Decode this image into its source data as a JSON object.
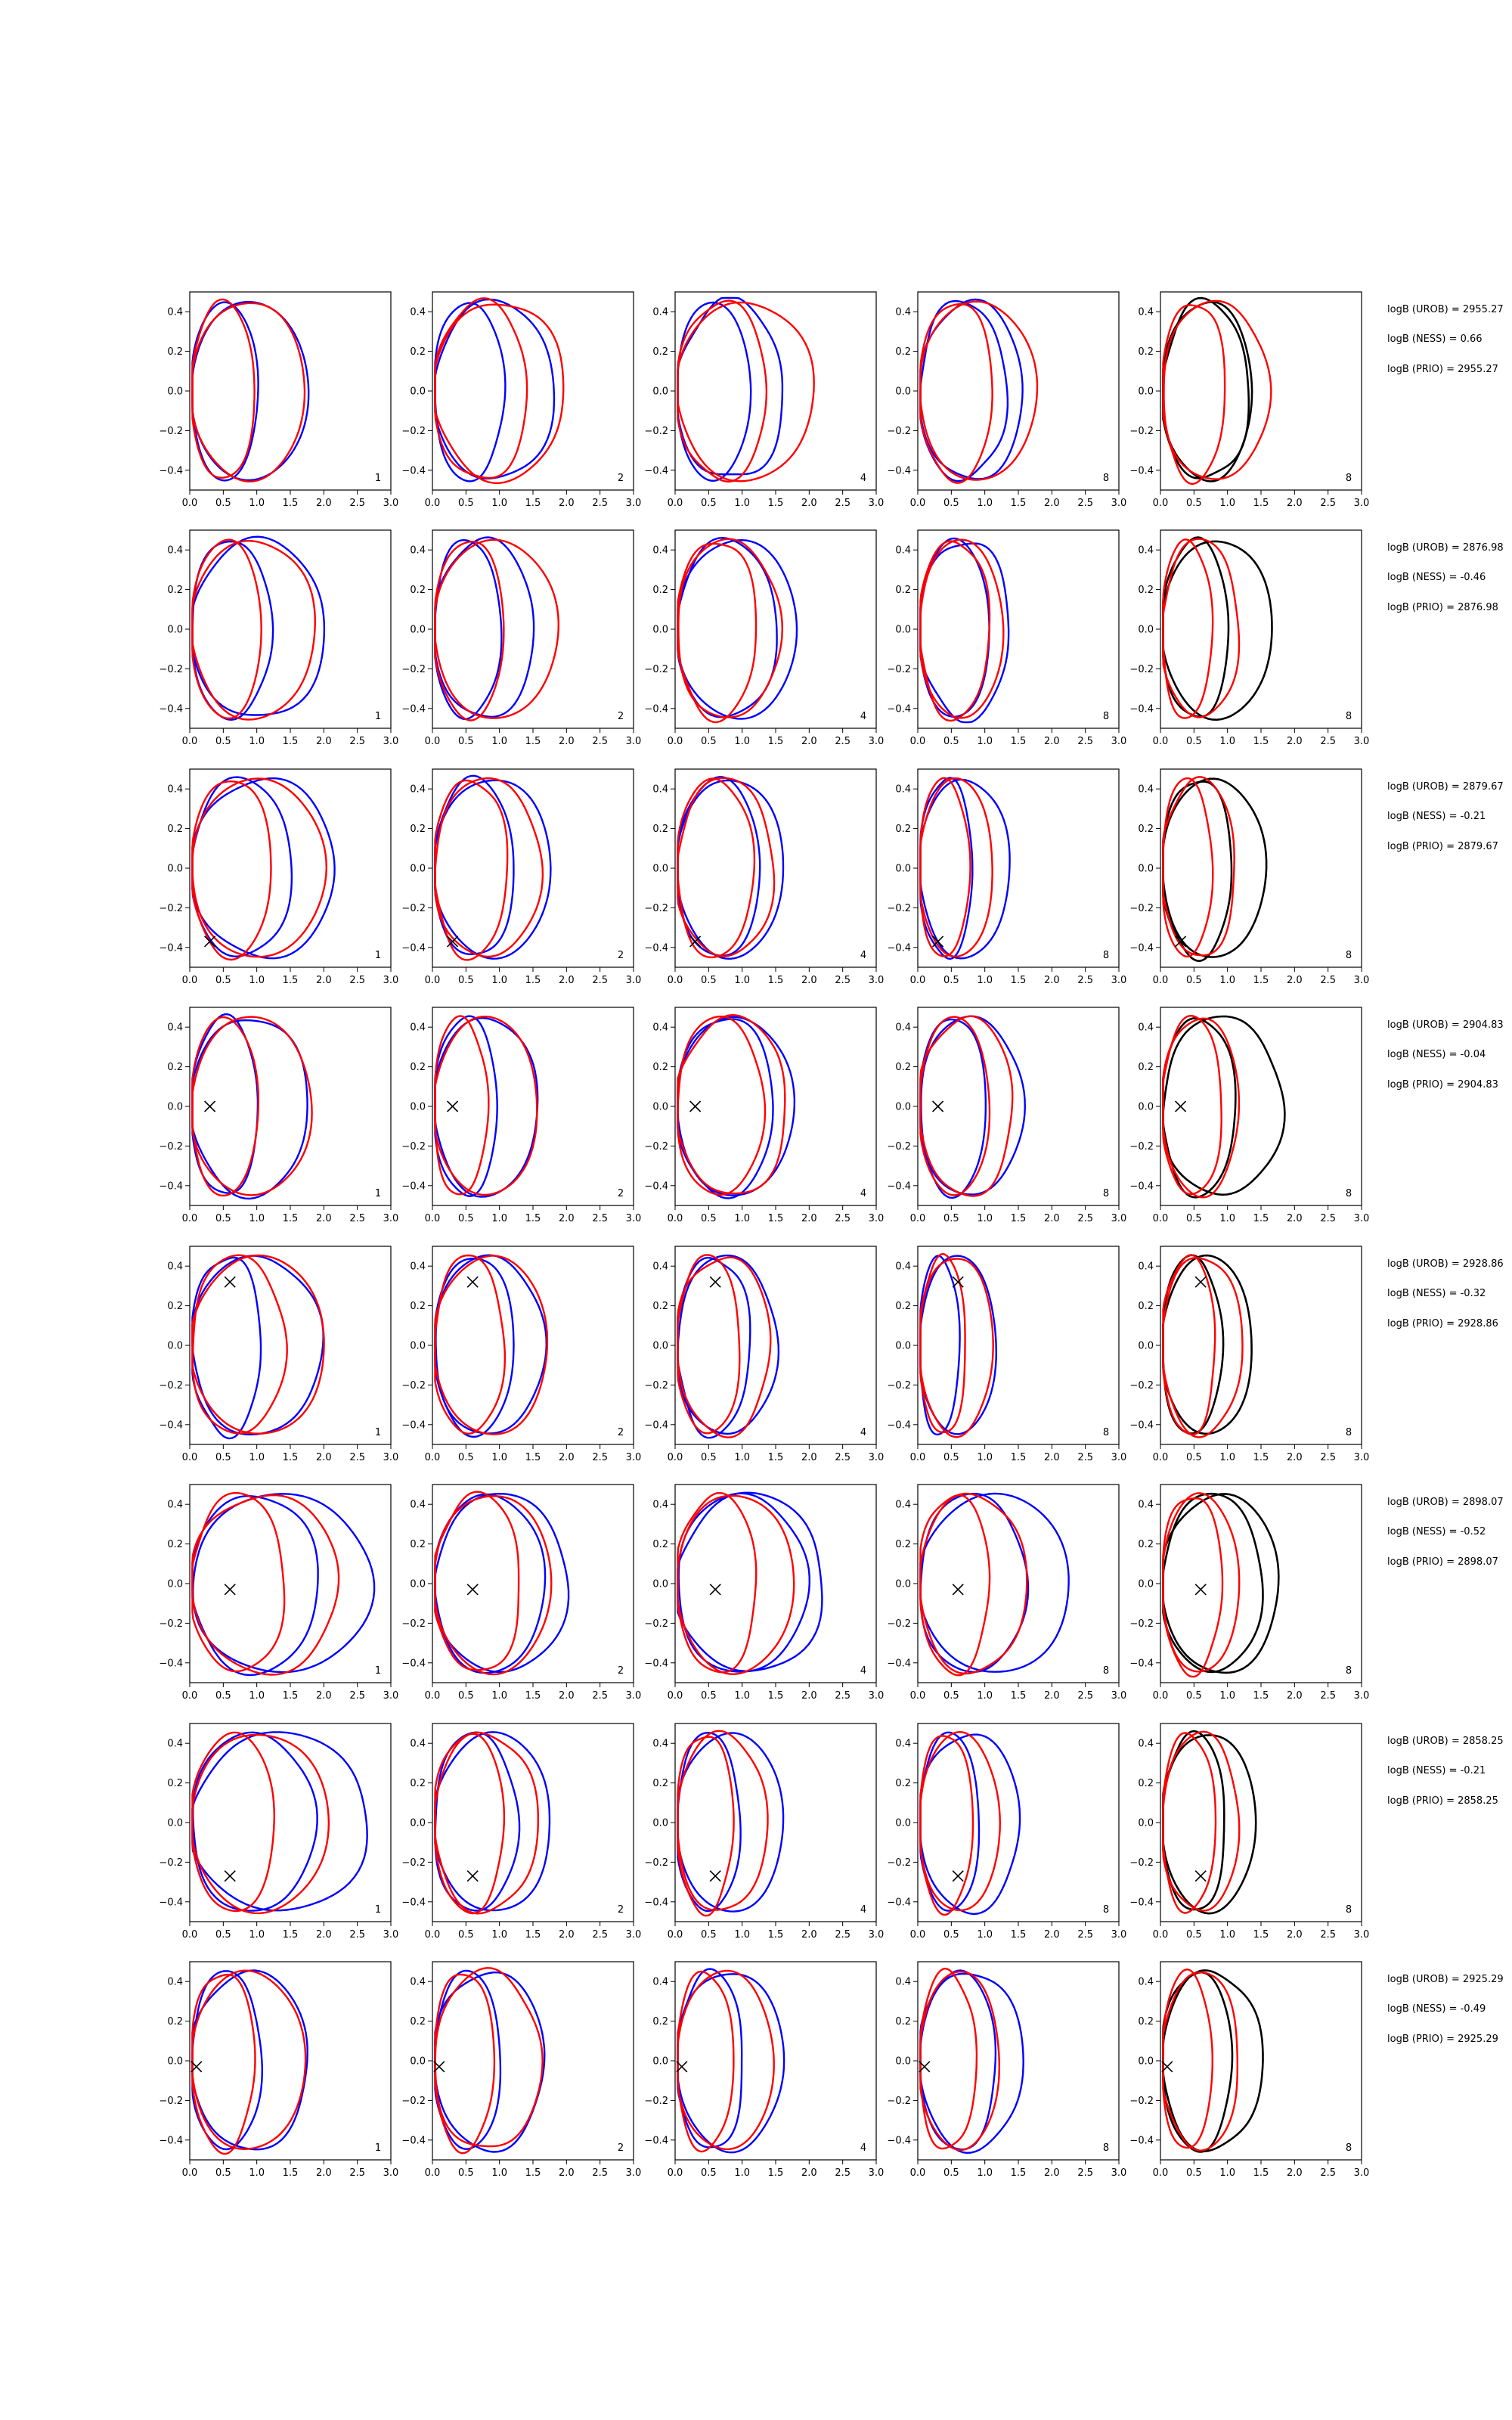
{
  "chart_data": {
    "type": "line",
    "xlim": [
      0,
      3
    ],
    "ylim": [
      -0.5,
      0.5
    ],
    "x_ticks": [
      "0.0",
      "0.5",
      "1.0",
      "1.5",
      "2.0",
      "2.5",
      "3.0"
    ],
    "y_ticks": [
      "0.4",
      "0.2",
      "0.0",
      "−0.2",
      "−0.4"
    ],
    "grid": false,
    "columns": [
      {
        "corner_label": "1",
        "colors": [
          "blue",
          "red"
        ]
      },
      {
        "corner_label": "2",
        "colors": [
          "blue",
          "red"
        ]
      },
      {
        "corner_label": "4",
        "colors": [
          "blue",
          "red"
        ]
      },
      {
        "corner_label": "8",
        "colors": [
          "blue",
          "red"
        ]
      },
      {
        "corner_label": "8",
        "colors": [
          "black",
          "red"
        ]
      }
    ],
    "colors": {
      "blue": "#0000ff",
      "red": "#ff0000",
      "black": "#000000"
    },
    "rows": [
      {
        "marker": null,
        "contours": [
          [
            [
              1.0,
              0.1
            ],
            [
              1.75,
              0.05
            ]
          ],
          [
            [
              0.95,
              0.15
            ],
            [
              1.7,
              0.1
            ]
          ],
          [
            [
              1.05,
              0.2
            ],
            [
              1.8,
              0.2
            ]
          ],
          [
            [
              1.4,
              0.25
            ],
            [
              1.95,
              0.2
            ]
          ],
          [
            [
              1.1,
              0.1
            ],
            [
              1.6,
              0.35
            ]
          ],
          [
            [
              1.35,
              0.25
            ],
            [
              2.05,
              0.15
            ]
          ],
          [
            [
              1.3,
              0.3
            ],
            [
              1.55,
              0.2
            ]
          ],
          [
            [
              1.1,
              0.2
            ],
            [
              1.75,
              0.1
            ]
          ],
          [
            [
              1.3,
              0.3
            ],
            [
              1.35,
              0.15
            ]
          ],
          [
            [
              0.95,
              0.25
            ],
            [
              1.6,
              0.2
            ]
          ]
        ]
      },
      {
        "marker": null,
        "contours": [
          [
            [
              1.2,
              0.2
            ],
            [
              2.0,
              0.2
            ]
          ],
          [
            [
              1.05,
              0.1
            ],
            [
              1.85,
              0.15
            ]
          ],
          [
            [
              1.0,
              0.2
            ],
            [
              1.5,
              0.2
            ]
          ],
          [
            [
              1.05,
              0.15
            ],
            [
              1.85,
              0.1
            ]
          ],
          [
            [
              1.5,
              0.2
            ],
            [
              1.8,
              0.1
            ]
          ],
          [
            [
              1.2,
              0.25
            ],
            [
              1.55,
              0.2
            ]
          ],
          [
            [
              1.05,
              0.1
            ],
            [
              1.35,
              0.3
            ]
          ],
          [
            [
              1.05,
              0.25
            ],
            [
              1.25,
              0.1
            ]
          ],
          [
            [
              1.0,
              0.2
            ],
            [
              1.65,
              0.1
            ]
          ],
          [
            [
              0.75,
              0.2
            ],
            [
              1.15,
              0.25
            ]
          ]
        ]
      },
      {
        "marker": [
          0.3,
          -0.37
        ],
        "contours": [
          [
            [
              1.5,
              0.2
            ],
            [
              2.15,
              0.2
            ]
          ],
          [
            [
              1.2,
              0.15
            ],
            [
              2.0,
              0.1
            ]
          ],
          [
            [
              1.2,
              0.2
            ],
            [
              1.75,
              0.1
            ]
          ],
          [
            [
              1.1,
              0.25
            ],
            [
              1.6,
              0.2
            ]
          ],
          [
            [
              1.25,
              0.15
            ],
            [
              1.6,
              0.1
            ]
          ],
          [
            [
              1.15,
              0.2
            ],
            [
              1.45,
              0.25
            ]
          ],
          [
            [
              0.8,
              0.25
            ],
            [
              1.35,
              0.15
            ]
          ],
          [
            [
              0.75,
              0.2
            ],
            [
              1.1,
              0.1
            ]
          ],
          [
            [
              1.05,
              0.25
            ],
            [
              1.55,
              0.1
            ]
          ],
          [
            [
              0.75,
              0.2
            ],
            [
              1.1,
              0.25
            ]
          ]
        ]
      },
      {
        "marker": [
          0.3,
          0.0
        ],
        "contours": [
          [
            [
              1.0,
              0.2
            ],
            [
              1.75,
              0.2
            ]
          ],
          [
            [
              1.0,
              0.1
            ],
            [
              1.8,
              0.1
            ]
          ],
          [
            [
              0.95,
              0.2
            ],
            [
              1.55,
              0.15
            ]
          ],
          [
            [
              0.8,
              0.25
            ],
            [
              1.55,
              0.1
            ]
          ],
          [
            [
              1.45,
              0.2
            ],
            [
              1.75,
              0.1
            ]
          ],
          [
            [
              1.3,
              0.2
            ],
            [
              1.65,
              0.25
            ]
          ],
          [
            [
              1.0,
              0.15
            ],
            [
              1.55,
              0.2
            ]
          ],
          [
            [
              1.05,
              0.1
            ],
            [
              1.4,
              0.25
            ]
          ],
          [
            [
              1.1,
              0.2
            ],
            [
              1.8,
              0.25
            ]
          ],
          [
            [
              0.9,
              0.2
            ],
            [
              1.15,
              0.15
            ]
          ]
        ]
      },
      {
        "marker": [
          0.6,
          0.32
        ],
        "contours": [
          [
            [
              1.05,
              0.3
            ],
            [
              1.95,
              0.2
            ]
          ],
          [
            [
              1.4,
              0.25
            ],
            [
              2.0,
              0.1
            ]
          ],
          [
            [
              1.2,
              0.15
            ],
            [
              1.65,
              0.2
            ]
          ],
          [
            [
              1.05,
              0.25
            ],
            [
              1.7,
              0.1
            ]
          ],
          [
            [
              1.1,
              0.3
            ],
            [
              1.5,
              0.2
            ]
          ],
          [
            [
              0.95,
              0.2
            ],
            [
              1.4,
              0.25
            ]
          ],
          [
            [
              0.6,
              0.2
            ],
            [
              1.15,
              0.1
            ]
          ],
          [
            [
              0.7,
              0.25
            ],
            [
              1.1,
              0.15
            ]
          ],
          [
            [
              0.9,
              0.2
            ],
            [
              1.35,
              0.1
            ]
          ],
          [
            [
              0.8,
              0.25
            ],
            [
              1.2,
              0.2
            ]
          ]
        ]
      },
      {
        "marker": [
          0.6,
          -0.03
        ],
        "contours": [
          [
            [
              1.9,
              0.2
            ],
            [
              2.7,
              0.15
            ]
          ],
          [
            [
              1.4,
              0.25
            ],
            [
              2.2,
              0.2
            ]
          ],
          [
            [
              1.65,
              0.15
            ],
            [
              2.0,
              0.2
            ]
          ],
          [
            [
              1.3,
              0.3
            ],
            [
              1.75,
              0.1
            ]
          ],
          [
            [
              1.95,
              0.2
            ],
            [
              2.2,
              0.25
            ]
          ],
          [
            [
              1.2,
              0.25
            ],
            [
              1.75,
              0.1
            ]
          ],
          [
            [
              1.6,
              0.2
            ],
            [
              2.25,
              0.1
            ]
          ],
          [
            [
              1.05,
              0.25
            ],
            [
              1.6,
              0.2
            ]
          ],
          [
            [
              1.5,
              0.2
            ],
            [
              1.75,
              0.15
            ]
          ],
          [
            [
              0.9,
              0.25
            ],
            [
              1.15,
              0.1
            ]
          ]
        ]
      },
      {
        "marker": [
          0.6,
          -0.27
        ],
        "contours": [
          [
            [
              1.85,
              0.2
            ],
            [
              2.65,
              0.2
            ]
          ],
          [
            [
              1.25,
              0.15
            ],
            [
              2.05,
              0.1
            ]
          ],
          [
            [
              1.25,
              0.25
            ],
            [
              1.75,
              0.15
            ]
          ],
          [
            [
              1.05,
              0.2
            ],
            [
              1.55,
              0.25
            ]
          ],
          [
            [
              0.95,
              0.2
            ],
            [
              1.6,
              0.1
            ]
          ],
          [
            [
              0.85,
              0.25
            ],
            [
              1.35,
              0.2
            ]
          ],
          [
            [
              0.9,
              0.15
            ],
            [
              1.5,
              0.2
            ]
          ],
          [
            [
              0.8,
              0.2
            ],
            [
              1.2,
              0.1
            ]
          ],
          [
            [
              0.95,
              0.25
            ],
            [
              1.4,
              0.1
            ]
          ],
          [
            [
              0.8,
              0.2
            ],
            [
              1.15,
              0.2
            ]
          ]
        ]
      },
      {
        "marker": [
          0.1,
          -0.03
        ],
        "contours": [
          [
            [
              1.05,
              0.2
            ],
            [
              1.75,
              0.2
            ]
          ],
          [
            [
              0.95,
              0.25
            ],
            [
              1.7,
              0.1
            ]
          ],
          [
            [
              1.0,
              0.15
            ],
            [
              1.65,
              0.2
            ]
          ],
          [
            [
              0.9,
              0.2
            ],
            [
              1.6,
              0.25
            ]
          ],
          [
            [
              1.0,
              0.3
            ],
            [
              1.6,
              0.15
            ]
          ],
          [
            [
              0.85,
              0.2
            ],
            [
              1.45,
              0.1
            ]
          ],
          [
            [
              1.15,
              0.2
            ],
            [
              1.55,
              0.2
            ]
          ],
          [
            [
              0.85,
              0.25
            ],
            [
              1.2,
              0.1
            ]
          ],
          [
            [
              1.05,
              0.2
            ],
            [
              1.5,
              0.25
            ]
          ],
          [
            [
              0.75,
              0.15
            ],
            [
              1.15,
              0.2
            ]
          ]
        ]
      }
    ],
    "annotations": [
      {
        "uroB": "logB (UROB) = 2955.27",
        "ness": "logB (NESS) = 0.66",
        "prio": "logB (PRIO) = 2955.27"
      },
      {
        "uroB": "logB (UROB) = 2876.98",
        "ness": "logB (NESS) = -0.46",
        "prio": "logB (PRIO) = 2876.98"
      },
      {
        "uroB": "logB (UROB) = 2879.67",
        "ness": "logB (NESS) = -0.21",
        "prio": "logB (PRIO) = 2879.67"
      },
      {
        "uroB": "logB (UROB) = 2904.83",
        "ness": "logB (NESS) = -0.04",
        "prio": "logB (PRIO) = 2904.83"
      },
      {
        "uroB": "logB (UROB) = 2928.86",
        "ness": "logB (NESS) = -0.32",
        "prio": "logB (PRIO) = 2928.86"
      },
      {
        "uroB": "logB (UROB) = 2898.07",
        "ness": "logB (NESS) = -0.52",
        "prio": "logB (PRIO) = 2898.07"
      },
      {
        "uroB": "logB (UROB) = 2858.25",
        "ness": "logB (NESS) = -0.21",
        "prio": "logB (PRIO) = 2858.25"
      },
      {
        "uroB": "logB (UROB) = 2925.29",
        "ness": "logB (NESS) = -0.49",
        "prio": "logB (PRIO) = 2925.29"
      }
    ]
  }
}
